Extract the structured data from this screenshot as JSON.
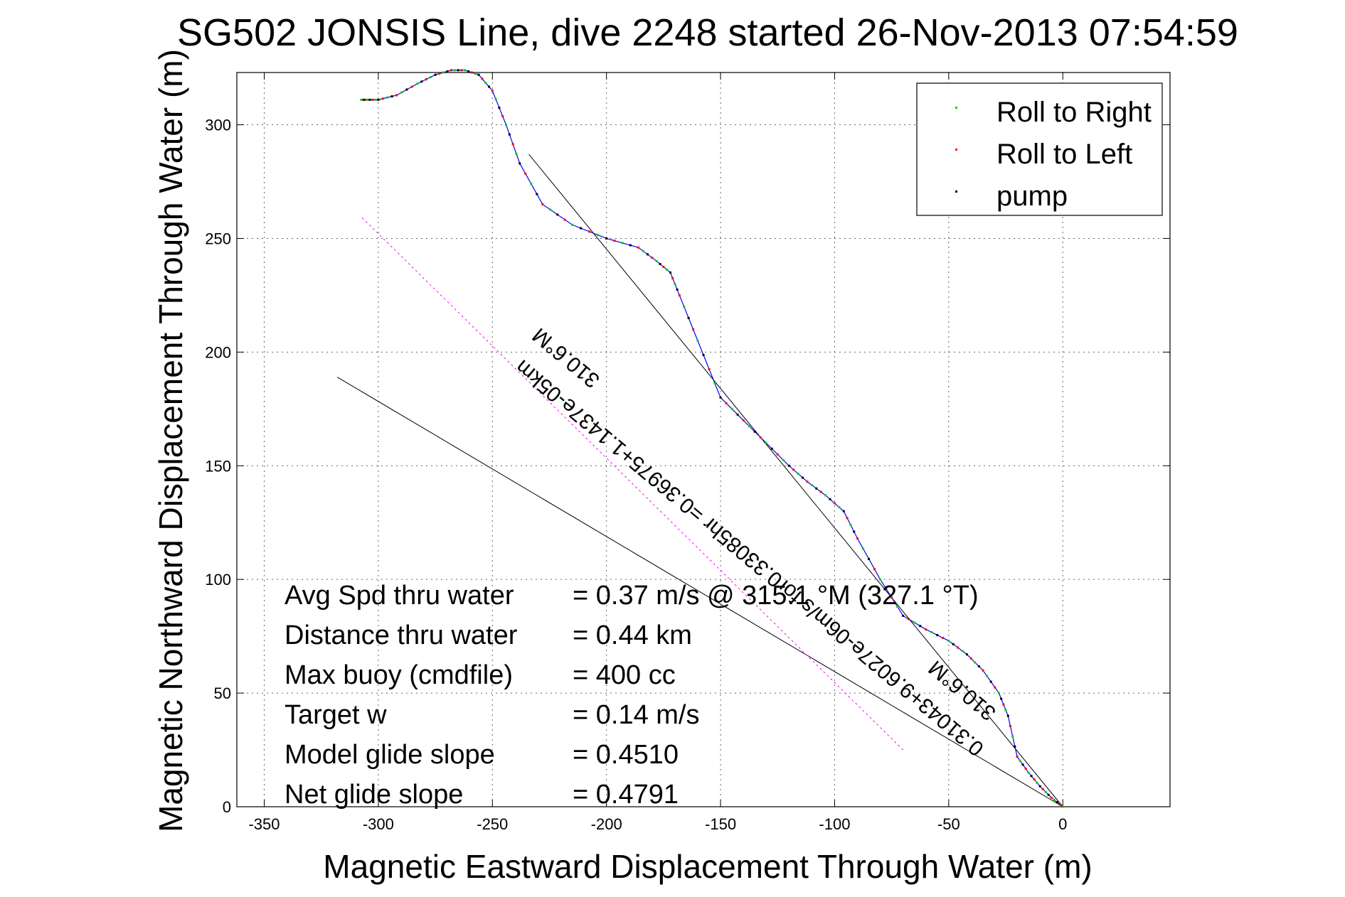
{
  "chart_data": {
    "type": "line",
    "title": "SG502 JONSIS Line, dive 2248 started 26-Nov-2013 07:54:59",
    "xlabel": "Magnetic Eastward Displacement Through Water (m)",
    "ylabel": "Magnetic Northward Displacement Through Water (m)",
    "xlim": [
      -362,
      47
    ],
    "ylim": [
      0,
      323
    ],
    "xticks": [
      -350,
      -300,
      -250,
      -200,
      -150,
      -100,
      -50,
      0
    ],
    "yticks": [
      0,
      50,
      100,
      150,
      200,
      250,
      300
    ],
    "grid": true,
    "legend_position": "top-right",
    "legend": [
      {
        "label": "Roll to Right",
        "color": "#00cc00"
      },
      {
        "label": "Roll to Left",
        "color": "#ff0000"
      },
      {
        "label": "pump",
        "color": "#000000"
      }
    ],
    "track": {
      "color": "#0000ff",
      "x": [
        0,
        -5,
        -10,
        -15,
        -20,
        -24,
        -28,
        -35,
        -42,
        -50,
        -60,
        -70,
        -80,
        -90,
        -96,
        -104,
        -112,
        -120,
        -130,
        -140,
        -150,
        -160,
        -168,
        -172,
        -178,
        -186,
        -200,
        -215,
        -228,
        -238,
        -244,
        -250,
        -256,
        -262,
        -268,
        -275,
        -283,
        -292,
        -300,
        -305,
        -308
      ],
      "y": [
        0,
        4,
        9,
        15,
        22,
        40,
        50,
        60,
        67,
        73,
        78,
        84,
        100,
        118,
        130,
        137,
        143,
        150,
        160,
        170,
        180,
        205,
        225,
        235,
        240,
        246,
        250,
        256,
        265,
        283,
        300,
        315,
        322,
        324,
        324,
        322,
        318,
        313,
        311,
        311,
        311
      ]
    },
    "lines": [
      {
        "name": "",
        "color": "#000000",
        "x": [
          0,
          -234
        ],
        "y": [
          0,
          287
        ]
      },
      {
        "name": "",
        "color": "#000000",
        "x": [
          0,
          -318
        ],
        "y": [
          0,
          189
        ]
      }
    ],
    "heading_line": {
      "color": "#ff00ff",
      "x": [
        -70,
        -308
      ],
      "y": [
        25,
        260
      ]
    },
    "annotations": {
      "fit_label": "0.31043+9.6027e-06m/s for0.33085hr =0.36975+1.1437e-05km",
      "heading_label_1": "310.6°M",
      "heading_label_2": "310.6°M"
    }
  },
  "stats": [
    {
      "label": "Avg Spd thru water",
      "value": "=  0.37 m/s @ 315.1 °M (327.1 °T)"
    },
    {
      "label": "Distance thru water",
      "value": "=  0.44 km"
    },
    {
      "label": "Max buoy (cmdfile)",
      "value": "= 400 cc"
    },
    {
      "label": "Target w",
      "value": "= 0.14 m/s"
    },
    {
      "label": "Model glide slope",
      "value": "= 0.4510"
    },
    {
      "label": "Net glide slope",
      "value": "= 0.4791"
    }
  ]
}
